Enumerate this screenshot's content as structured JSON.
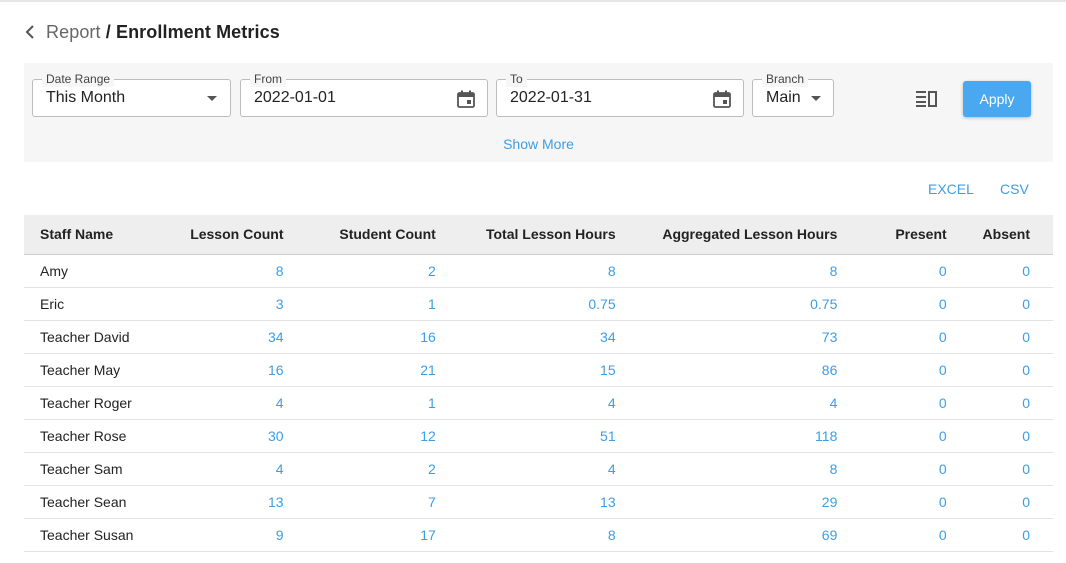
{
  "header": {
    "parent": "Report",
    "separator": "/",
    "current": "Enrollment Metrics"
  },
  "filters": {
    "date_range": {
      "label": "Date Range",
      "value": "This Month"
    },
    "from": {
      "label": "From",
      "value": "2022-01-01"
    },
    "to": {
      "label": "To",
      "value": "2022-01-31"
    },
    "branch": {
      "label": "Branch",
      "value": "Main"
    },
    "apply_label": "Apply",
    "show_more_label": "Show More"
  },
  "export": {
    "excel_label": "EXCEL",
    "csv_label": "CSV"
  },
  "colors": {
    "accent": "#3c9ee5",
    "apply_bg": "#4aa8f0",
    "panel_bg": "#f6f6f6",
    "header_bg": "#eeeeee"
  },
  "table": {
    "columns": [
      "Staff Name",
      "Lesson Count",
      "Student Count",
      "Total Lesson Hours",
      "Aggregated Lesson Hours",
      "Present",
      "Absent"
    ],
    "rows": [
      [
        "Amy",
        "8",
        "2",
        "8",
        "8",
        "0",
        "0"
      ],
      [
        "Eric",
        "3",
        "1",
        "0.75",
        "0.75",
        "0",
        "0"
      ],
      [
        "Teacher David",
        "34",
        "16",
        "34",
        "73",
        "0",
        "0"
      ],
      [
        "Teacher May",
        "16",
        "21",
        "15",
        "86",
        "0",
        "0"
      ],
      [
        "Teacher Roger",
        "4",
        "1",
        "4",
        "4",
        "0",
        "0"
      ],
      [
        "Teacher Rose",
        "30",
        "12",
        "51",
        "118",
        "0",
        "0"
      ],
      [
        "Teacher Sam",
        "4",
        "2",
        "4",
        "8",
        "0",
        "0"
      ],
      [
        "Teacher Sean",
        "13",
        "7",
        "13",
        "29",
        "0",
        "0"
      ],
      [
        "Teacher Susan",
        "9",
        "17",
        "8",
        "69",
        "0",
        "0"
      ]
    ]
  }
}
